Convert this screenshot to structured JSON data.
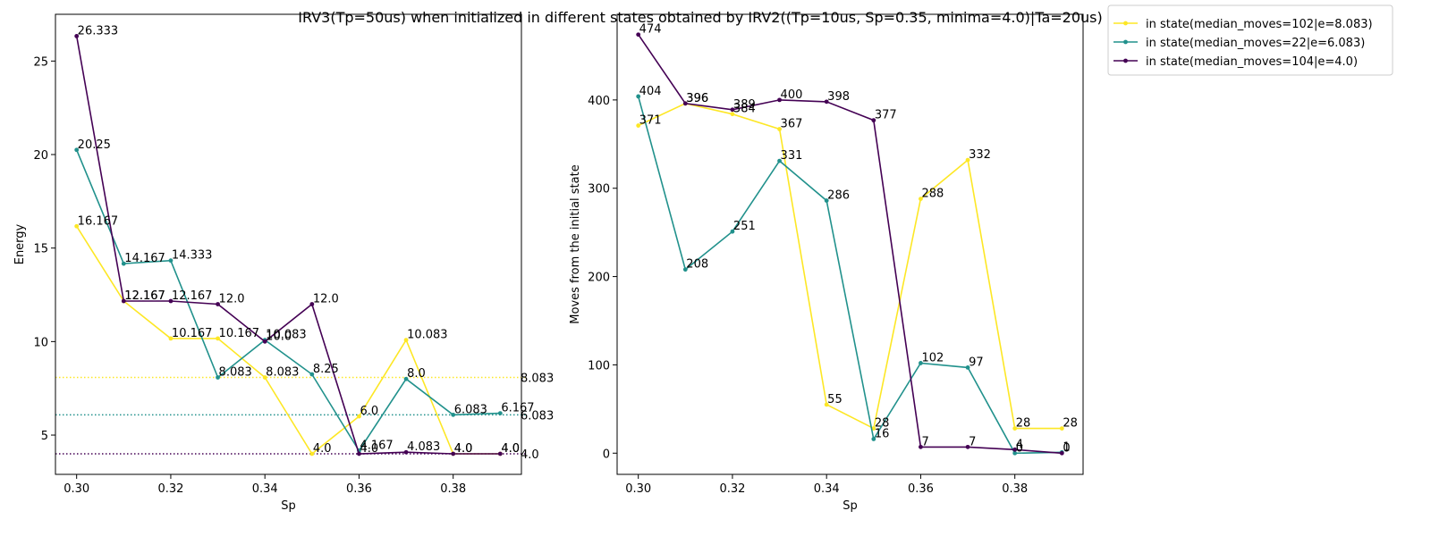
{
  "title": "IRV3(Tp=50us) when initialized in different states obtained by IRV2((Tp=10us, Sp=0.35, minima=4.0)|Ta=20us)",
  "legend": {
    "placement": "upper-right-outside",
    "entries": [
      {
        "label": "in state(median_moves=102|e=8.083)",
        "color": "#fde725"
      },
      {
        "label": "in state(median_moves=22|e=6.083)",
        "color": "#21918c"
      },
      {
        "label": "in state(median_moves=104|e=4.0)",
        "color": "#440154"
      }
    ]
  },
  "chart_data": [
    {
      "type": "line",
      "xlabel": "Sp",
      "ylabel": "Energy",
      "xlim": [
        0.2955,
        0.3945
      ],
      "ylim": [
        2.9,
        27.5
      ],
      "xticks": [
        "0.30",
        "0.32",
        "0.34",
        "0.36",
        "0.38"
      ],
      "xtick_values": [
        0.3,
        0.32,
        0.34,
        0.36,
        0.38
      ],
      "yticks": [
        "5",
        "10",
        "15",
        "20",
        "25"
      ],
      "ytick_values": [
        5,
        10,
        15,
        20,
        25
      ],
      "grid": false,
      "x": [
        0.3,
        0.31,
        0.32,
        0.33,
        0.34,
        0.35,
        0.36,
        0.37,
        0.38,
        0.39
      ],
      "series": [
        {
          "name": "in state(median_moves=102|e=8.083)",
          "color": "#fde725",
          "values": [
            16.167,
            12.167,
            10.167,
            10.167,
            8.083,
            4.0,
            6.0,
            10.083,
            4.0,
            4.0
          ],
          "labels": [
            "16.167",
            "12.167",
            "10.167",
            "10.167",
            "8.083",
            "4.0",
            "6.0",
            "10.083",
            "4.0",
            "4.0"
          ]
        },
        {
          "name": "in state(median_moves=22|e=6.083)",
          "color": "#21918c",
          "values": [
            20.25,
            14.167,
            14.333,
            8.083,
            10.083,
            8.25,
            4.167,
            8.0,
            6.083,
            6.167
          ],
          "labels": [
            "20.25",
            "14.167",
            "14.333",
            "8.083",
            "10.083",
            "8.25",
            "4.167",
            "8.0",
            "6.083",
            "6.167"
          ]
        },
        {
          "name": "in state(median_moves=104|e=4.0)",
          "color": "#440154",
          "values": [
            26.333,
            12.167,
            12.167,
            12.0,
            10.0,
            12.0,
            4.0,
            4.083,
            4.0,
            4.0
          ],
          "labels": [
            "26.333",
            "12.167",
            "12.167",
            "12.0",
            "10.0",
            "12.0",
            "4.0",
            "4.083",
            "4.0",
            "4.0"
          ]
        }
      ],
      "reference_lines": [
        {
          "value": 8.083,
          "label": "8.083",
          "color": "#fde725",
          "style": "dotted"
        },
        {
          "value": 6.083,
          "label": "6.083",
          "color": "#21918c",
          "style": "dotted"
        },
        {
          "value": 4.0,
          "label": "4.0",
          "color": "#440154",
          "style": "dotted"
        }
      ]
    },
    {
      "type": "line",
      "xlabel": "Sp",
      "ylabel": "Moves from the initial state",
      "xlim": [
        0.2955,
        0.3945
      ],
      "ylim": [
        -24,
        497
      ],
      "xticks": [
        "0.30",
        "0.32",
        "0.34",
        "0.36",
        "0.38"
      ],
      "xtick_values": [
        0.3,
        0.32,
        0.34,
        0.36,
        0.38
      ],
      "yticks": [
        "0",
        "100",
        "200",
        "300",
        "400"
      ],
      "ytick_values": [
        0,
        100,
        200,
        300,
        400
      ],
      "grid": false,
      "x": [
        0.3,
        0.31,
        0.32,
        0.33,
        0.34,
        0.35,
        0.36,
        0.37,
        0.38,
        0.39
      ],
      "series": [
        {
          "name": "in state(median_moves=102|e=8.083)",
          "color": "#fde725",
          "values": [
            371,
            396,
            384,
            367,
            55,
            28,
            288,
            332,
            28,
            28
          ],
          "labels": [
            "371",
            "396",
            "384",
            "367",
            "55",
            "28",
            "288",
            "332",
            "28",
            "28"
          ]
        },
        {
          "name": "in state(median_moves=22|e=6.083)",
          "color": "#21918c",
          "values": [
            404,
            208,
            251,
            331,
            286,
            16,
            102,
            97,
            0,
            1
          ],
          "labels": [
            "404",
            "208",
            "251",
            "331",
            "286",
            "16",
            "102",
            "97",
            "0",
            "1"
          ]
        },
        {
          "name": "in state(median_moves=104|e=4.0)",
          "color": "#440154",
          "values": [
            474,
            396,
            389,
            400,
            398,
            377,
            7,
            7,
            4,
            0
          ],
          "labels": [
            "474",
            "396",
            "389",
            "400",
            "398",
            "377",
            "7",
            "7",
            "4",
            "0"
          ]
        }
      ]
    }
  ]
}
